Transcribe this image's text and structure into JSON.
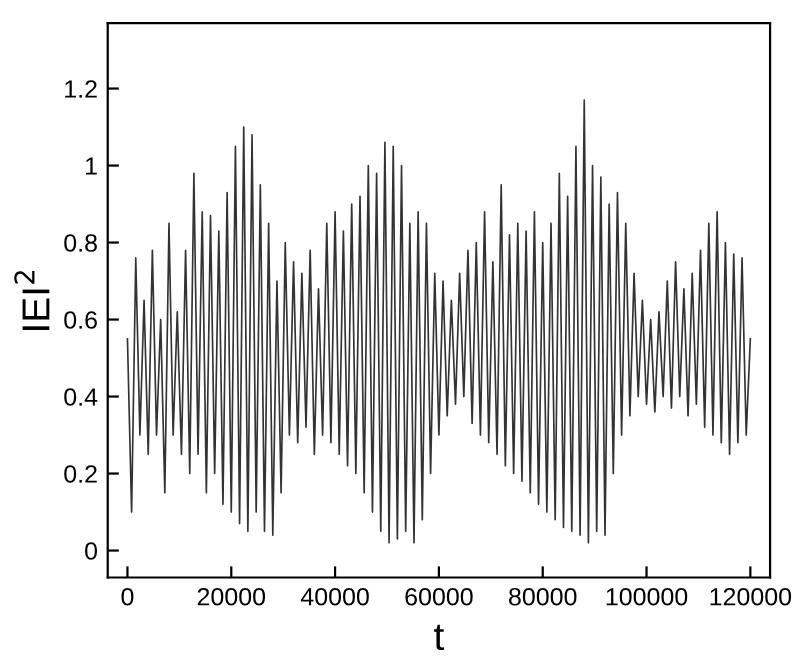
{
  "chart_data": {
    "type": "line",
    "xlabel": "t",
    "ylabel": "IEI$^{2}$",
    "xlim": [
      -3800,
      123800
    ],
    "ylim": [
      -0.07,
      1.37
    ],
    "xticks": [
      0,
      20000,
      40000,
      60000,
      80000,
      100000,
      120000
    ],
    "yticks": [
      0,
      0.2,
      0.4,
      0.6,
      0.8,
      1,
      1.2
    ],
    "grid": false,
    "legend": false,
    "marker": "none",
    "line_style": "solid",
    "series": [
      {
        "color": "#333333",
        "x": [
          0,
          800,
          1600,
          2400,
          3200,
          4000,
          4800,
          5600,
          6400,
          7200,
          8000,
          8800,
          9600,
          10400,
          11200,
          12000,
          12800,
          13600,
          14400,
          15200,
          16000,
          16800,
          17600,
          18400,
          19200,
          20000,
          20800,
          21600,
          22400,
          23200,
          24000,
          24800,
          25600,
          26400,
          27200,
          28000,
          28800,
          29600,
          30400,
          31200,
          32000,
          32800,
          33600,
          34400,
          35200,
          36000,
          36800,
          37600,
          38400,
          39200,
          40000,
          40800,
          41600,
          42400,
          43200,
          44000,
          44800,
          45600,
          46400,
          47200,
          48000,
          48800,
          49600,
          50400,
          51200,
          52000,
          52800,
          53600,
          54400,
          55200,
          56000,
          56800,
          57600,
          58400,
          59200,
          60000,
          60800,
          61600,
          62400,
          63200,
          64000,
          64800,
          65600,
          66400,
          67200,
          68000,
          68800,
          69600,
          70400,
          71200,
          72000,
          72800,
          73600,
          74400,
          75200,
          76000,
          76800,
          77600,
          78400,
          79200,
          80000,
          80800,
          81600,
          82400,
          83200,
          84000,
          84800,
          85600,
          86400,
          87200,
          88000,
          88800,
          89600,
          90400,
          91200,
          92000,
          92800,
          93600,
          94400,
          95200,
          96000,
          96800,
          97600,
          98400,
          99200,
          100000,
          100800,
          101600,
          102400,
          103200,
          104000,
          104800,
          105600,
          106400,
          107200,
          108000,
          108800,
          109600,
          110400,
          111200,
          112000,
          112800,
          113600,
          114400,
          115200,
          116000,
          116800,
          117600,
          118400,
          119200,
          120000
        ],
        "values": [
          0.55,
          0.1,
          0.76,
          0.3,
          0.65,
          0.25,
          0.78,
          0.3,
          0.6,
          0.15,
          0.85,
          0.3,
          0.62,
          0.25,
          0.78,
          0.2,
          0.98,
          0.25,
          0.88,
          0.15,
          0.87,
          0.2,
          0.83,
          0.12,
          0.93,
          0.1,
          1.05,
          0.07,
          1.1,
          0.05,
          1.08,
          0.1,
          0.95,
          0.05,
          0.85,
          0.04,
          0.7,
          0.15,
          0.8,
          0.3,
          0.75,
          0.28,
          0.72,
          0.32,
          0.78,
          0.25,
          0.68,
          0.3,
          0.85,
          0.28,
          0.88,
          0.25,
          0.83,
          0.22,
          0.9,
          0.2,
          0.92,
          0.15,
          1.0,
          0.1,
          0.98,
          0.05,
          1.06,
          0.02,
          1.05,
          0.03,
          1.0,
          0.05,
          0.85,
          0.02,
          0.88,
          0.08,
          0.85,
          0.2,
          0.72,
          0.3,
          0.7,
          0.35,
          0.65,
          0.38,
          0.72,
          0.4,
          0.78,
          0.33,
          0.8,
          0.3,
          0.88,
          0.28,
          0.75,
          0.25,
          0.95,
          0.22,
          0.82,
          0.2,
          0.85,
          0.18,
          0.83,
          0.15,
          0.88,
          0.12,
          0.8,
          0.1,
          0.85,
          0.08,
          0.98,
          0.06,
          0.92,
          0.05,
          1.05,
          0.04,
          1.17,
          0.02,
          1.0,
          0.05,
          0.97,
          0.04,
          0.9,
          0.2,
          0.93,
          0.3,
          0.85,
          0.35,
          0.72,
          0.4,
          0.65,
          0.38,
          0.6,
          0.36,
          0.62,
          0.4,
          0.7,
          0.37,
          0.75,
          0.4,
          0.68,
          0.35,
          0.72,
          0.38,
          0.78,
          0.32,
          0.85,
          0.3,
          0.88,
          0.28,
          0.8,
          0.25,
          0.77,
          0.28,
          0.76,
          0.3,
          0.55
        ]
      }
    ]
  }
}
